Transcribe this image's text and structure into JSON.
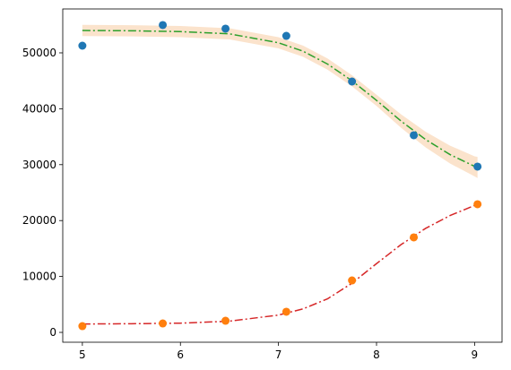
{
  "chart_data": {
    "type": "scatter",
    "xlim": [
      4.8,
      9.28
    ],
    "ylim": [
      -1760,
      57850
    ],
    "xticks": [
      5,
      6,
      7,
      8,
      9
    ],
    "yticks": [
      0,
      10000,
      20000,
      30000,
      40000,
      50000
    ],
    "series": [
      {
        "kind": "band",
        "color": "#fbe3cc",
        "x": [
          5,
          5.5,
          6,
          6.5,
          7,
          7.25,
          7.5,
          7.75,
          8,
          8.25,
          8.5,
          8.75,
          9,
          9.03
        ],
        "lower": [
          53000,
          52950,
          52800,
          52400,
          50800,
          49300,
          47000,
          44000,
          40500,
          36600,
          33100,
          30200,
          27900,
          27600
        ],
        "upper": [
          55000,
          54950,
          54800,
          54400,
          52800,
          51300,
          49000,
          46000,
          42500,
          39000,
          35900,
          33400,
          31500,
          31400
        ]
      },
      {
        "kind": "line",
        "color": "#2ca02c",
        "x": [
          5,
          5.5,
          6,
          6.5,
          7,
          7.25,
          7.5,
          7.75,
          8,
          8.25,
          8.5,
          8.75,
          9,
          9.03
        ],
        "values": [
          54000,
          53950,
          53800,
          53400,
          51800,
          50300,
          48000,
          45000,
          41500,
          37800,
          34500,
          31800,
          29700,
          29500
        ]
      },
      {
        "kind": "line",
        "color": "#d62728",
        "x": [
          5,
          5.5,
          6,
          6.5,
          7,
          7.25,
          7.5,
          7.75,
          8,
          8.25,
          8.5,
          8.75,
          9,
          9.03
        ],
        "values": [
          1500,
          1550,
          1650,
          2000,
          3100,
          4200,
          6000,
          8800,
          12300,
          15700,
          18600,
          20900,
          22700,
          22850
        ]
      },
      {
        "kind": "points",
        "color": "#1f77b4",
        "x": [
          5,
          5.82,
          6.46,
          7.08,
          7.75,
          8.38,
          9.03
        ],
        "values": [
          51280,
          54970,
          54330,
          53040,
          44870,
          35260,
          29650
        ]
      },
      {
        "kind": "points",
        "color": "#ff7f0e",
        "x": [
          5,
          5.82,
          6.46,
          7.08,
          7.75,
          8.38,
          9.03
        ],
        "values": [
          1120,
          1600,
          2080,
          3690,
          9290,
          16990,
          22920
        ]
      }
    ]
  }
}
